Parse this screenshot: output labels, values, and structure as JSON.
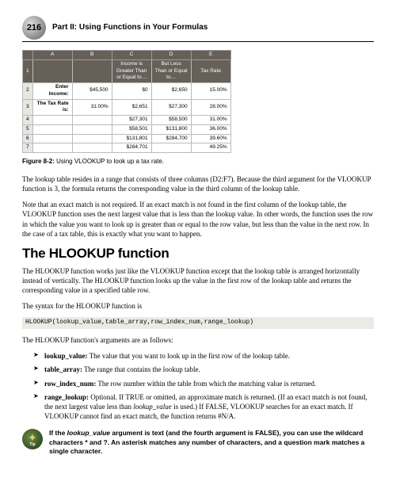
{
  "header": {
    "page_number": "216",
    "part_title": "Part II: Using Functions in Your Formulas"
  },
  "excel_table": {
    "col_headers": [
      "",
      "A",
      "B",
      "C",
      "D",
      "E"
    ],
    "inner_header_row": [
      "",
      "",
      "",
      "Income is Greater Than or Equal to…",
      "But Less Than or Equal to…",
      "Tax Rate"
    ],
    "rows": [
      [
        "1",
        "",
        "",
        "",
        "",
        ""
      ],
      [
        "2",
        "Enter Income:",
        "$45,500",
        "$0",
        "$2,650",
        "15.00%"
      ],
      [
        "3",
        "The Tax Rate is:",
        "31.00%",
        "$2,651",
        "$27,300",
        "28.00%"
      ],
      [
        "4",
        "",
        "",
        "$27,301",
        "$58,500",
        "31.00%"
      ],
      [
        "5",
        "",
        "",
        "$58,501",
        "$131,800",
        "36.00%"
      ],
      [
        "6",
        "",
        "",
        "$131,801",
        "$284,700",
        "39.60%"
      ],
      [
        "7",
        "",
        "",
        "$284,701",
        "",
        "49.25%"
      ]
    ]
  },
  "figure_caption": {
    "label": "Figure 8-2:",
    "text": "Using VLOOKUP to look up a tax rate."
  },
  "body1": "The lookup table resides in a range that consists of three columns (D2:F7). Because the third argument for the VLOOKUP function is 3, the formula returns the corresponding value in the third column of the lookup table.",
  "body2": "Note that an exact match is not required. If an exact match is not found in the first column of the lookup table, the VLOOKUP function uses the next largest value that is less than the lookup value. In other words, the function uses the row in which the value you want to look up is greater than or equal to the row value, but less than the value in the next row. In the case of a tax table, this is exactly what you want to happen.",
  "section_heading": "The HLOOKUP function",
  "body3": "The HLOOKUP function works just like the VLOOKUP function except that the lookup table is arranged horizontally instead of vertically. The HLOOKUP function looks up the value in the first row of the lookup table and returns the corresponding value in a specified table row.",
  "body4": "The syntax for the HLOOKUP function is",
  "code": "HLOOKUP(lookup_value,table_array,row_index_num,range_lookup)",
  "body5": "The HLOOKUP function's arguments are as follows:",
  "args": [
    {
      "term": "lookup_value:",
      "desc": " The value that you want to look up in the first row of the lookup table."
    },
    {
      "term": "table_array:",
      "desc": " The range that contains the lookup table."
    },
    {
      "term": "row_index_num:",
      "desc": " The row number within the table from which the matching value is returned."
    },
    {
      "term": "range_lookup:",
      "desc_pre": " Optional. If TRUE or omitted, an approximate match is returned. (If an exact match is not found, the next largest value less than ",
      "italic": "lookup_value",
      "desc_post": " is used.) If FALSE, VLOOKUP searches for an exact match. If VLOOKUP cannot find an exact match, the function returns #N/A."
    }
  ],
  "tip": {
    "pre": "If the ",
    "italic": "lookup_value",
    "post": " argument is text (and the fourth argument is FALSE), you can use the wildcard characters * and ?. An asterisk matches any number of characters, and a question mark matches a single character."
  }
}
